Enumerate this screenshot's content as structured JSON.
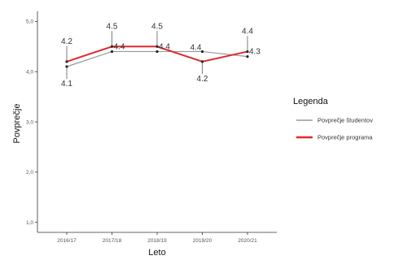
{
  "chart_data": {
    "type": "line",
    "categories": [
      "2016/17",
      "2017/18",
      "2018/19",
      "2019/20",
      "2020/21"
    ],
    "xlabel": "Leto",
    "ylabel": "Povprečje",
    "ylim": [
      0.8,
      5.2
    ],
    "yticks": [
      1.0,
      2.0,
      3.0,
      4.0,
      5.0
    ],
    "ytick_labels": [
      "1,0",
      "2,0",
      "3,0",
      "4,0",
      "5,0"
    ],
    "grid": false,
    "legend": {
      "title": "Legenda",
      "position": "right"
    },
    "series": [
      {
        "name": "Povprečje študentov",
        "color": "#999999",
        "values": [
          4.1,
          4.4,
          4.4,
          4.4,
          4.3
        ]
      },
      {
        "name": "Povprečje programa",
        "color": "#e0282e",
        "values": [
          4.2,
          4.5,
          4.5,
          4.2,
          4.4
        ]
      }
    ],
    "annotations": [
      {
        "x": "2016/17",
        "label": "4.2",
        "side": "above"
      },
      {
        "x": "2016/17",
        "label": "4.1",
        "side": "below"
      },
      {
        "x": "2017/18",
        "label": "4.5",
        "side": "above"
      },
      {
        "x": "2017/18",
        "label": "4.4",
        "side": "right"
      },
      {
        "x": "2018/19",
        "label": "4.5",
        "side": "above"
      },
      {
        "x": "2018/19",
        "label": "4.4",
        "side": "right"
      },
      {
        "x": "2019/20",
        "label": "4.4",
        "side": "left"
      },
      {
        "x": "2019/20",
        "label": "4.2",
        "side": "below"
      },
      {
        "x": "2020/21",
        "label": "4.4",
        "side": "above"
      },
      {
        "x": "2020/21",
        "label": "4.3",
        "side": "right"
      }
    ]
  }
}
